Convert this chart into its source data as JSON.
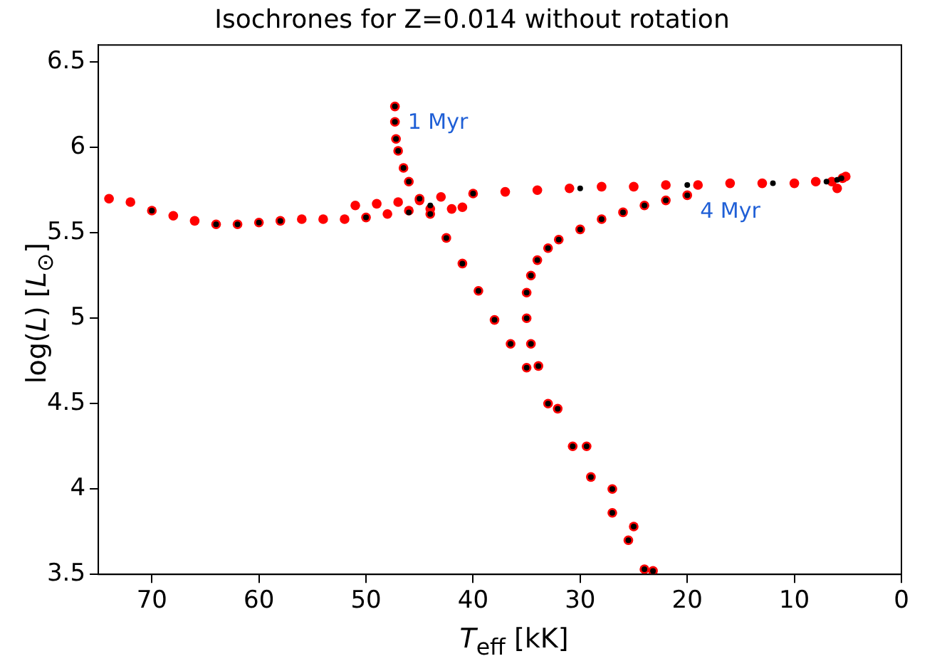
{
  "chart_data": {
    "type": "scatter",
    "title": "Isochrones for Z=0.014 without rotation",
    "xlabel": "T$_{eff}$ [kK]",
    "ylabel": "log(L) [L$_{⊙}$]",
    "xlim": [
      75,
      0
    ],
    "ylim": [
      3.5,
      6.6
    ],
    "xticks": [
      70,
      60,
      50,
      40,
      30,
      20,
      10,
      0
    ],
    "yticks": [
      3.5,
      4.0,
      4.5,
      5.0,
      5.5,
      6.0,
      6.5
    ],
    "grid": false,
    "legend": false,
    "marker": "circle",
    "annotations": [
      {
        "text": "1 Myr",
        "x": 47.3,
        "y": 6.24
      },
      {
        "text": "4 Myr",
        "x": 20,
        "y": 5.72
      }
    ],
    "series": [
      {
        "color": "#ff0000",
        "x": [
          74,
          72,
          70,
          68,
          66,
          64,
          62,
          60,
          58,
          56,
          54,
          52,
          50,
          48,
          46,
          44,
          42,
          41,
          51,
          49,
          47,
          45,
          43,
          40,
          37,
          34,
          31,
          28,
          25,
          22,
          19,
          16,
          13,
          10,
          8,
          6.5,
          5.5,
          5.2,
          6,
          47.3,
          47.3,
          47.2,
          47.0,
          46.5,
          46.0,
          45.0,
          44.0,
          42.5,
          41,
          39.5,
          38,
          36.5,
          35,
          33,
          30.7,
          29,
          27,
          25.5,
          24,
          20,
          22,
          24,
          26,
          28,
          30,
          32,
          33,
          34,
          34.6,
          35,
          35,
          34.6,
          33.9,
          32.1,
          29.4,
          27,
          25,
          23.2
        ],
        "values": [
          5.7,
          5.68,
          5.63,
          5.6,
          5.57,
          5.55,
          5.55,
          5.56,
          5.57,
          5.58,
          5.58,
          5.58,
          5.59,
          5.61,
          5.63,
          5.64,
          5.64,
          5.65,
          5.66,
          5.67,
          5.68,
          5.69,
          5.71,
          5.73,
          5.74,
          5.75,
          5.76,
          5.77,
          5.77,
          5.78,
          5.78,
          5.79,
          5.79,
          5.79,
          5.8,
          5.8,
          5.82,
          5.83,
          5.76,
          6.24,
          6.15,
          6.05,
          5.98,
          5.88,
          5.8,
          5.7,
          5.61,
          5.47,
          5.32,
          5.16,
          4.99,
          4.85,
          4.71,
          4.5,
          4.25,
          4.07,
          3.86,
          3.7,
          3.53,
          5.72,
          5.69,
          5.66,
          5.62,
          5.58,
          5.52,
          5.46,
          5.41,
          5.34,
          5.25,
          5.15,
          5.0,
          4.85,
          4.72,
          4.47,
          4.25,
          4.0,
          3.78,
          3.52
        ]
      },
      {
        "color": "#000000",
        "x": [
          70,
          64,
          62,
          60,
          58,
          50,
          46,
          44,
          40,
          30,
          20,
          12,
          7,
          6,
          5.6,
          47.3,
          47.3,
          47.2,
          47.0,
          46.5,
          46.0,
          45.0,
          44.0,
          42.5,
          41,
          39.5,
          38,
          36.5,
          35,
          33,
          30.7,
          29,
          27,
          25.5,
          24,
          20,
          22,
          24,
          26,
          28,
          30,
          32,
          33,
          34,
          34.6,
          35,
          35,
          34.6,
          33.9,
          32.1,
          29.4,
          27,
          25,
          23.2
        ],
        "values": [
          5.63,
          5.55,
          5.55,
          5.56,
          5.57,
          5.59,
          5.62,
          5.66,
          5.73,
          5.76,
          5.78,
          5.79,
          5.8,
          5.81,
          5.82,
          6.24,
          6.15,
          6.05,
          5.98,
          5.88,
          5.8,
          5.7,
          5.61,
          5.47,
          5.32,
          5.16,
          4.99,
          4.85,
          4.71,
          4.5,
          4.25,
          4.07,
          3.86,
          3.7,
          3.53,
          5.72,
          5.69,
          5.66,
          5.62,
          5.58,
          5.52,
          5.46,
          5.41,
          5.34,
          5.25,
          5.15,
          5.0,
          4.85,
          4.72,
          4.47,
          4.25,
          4.0,
          3.78,
          3.52
        ]
      }
    ]
  }
}
